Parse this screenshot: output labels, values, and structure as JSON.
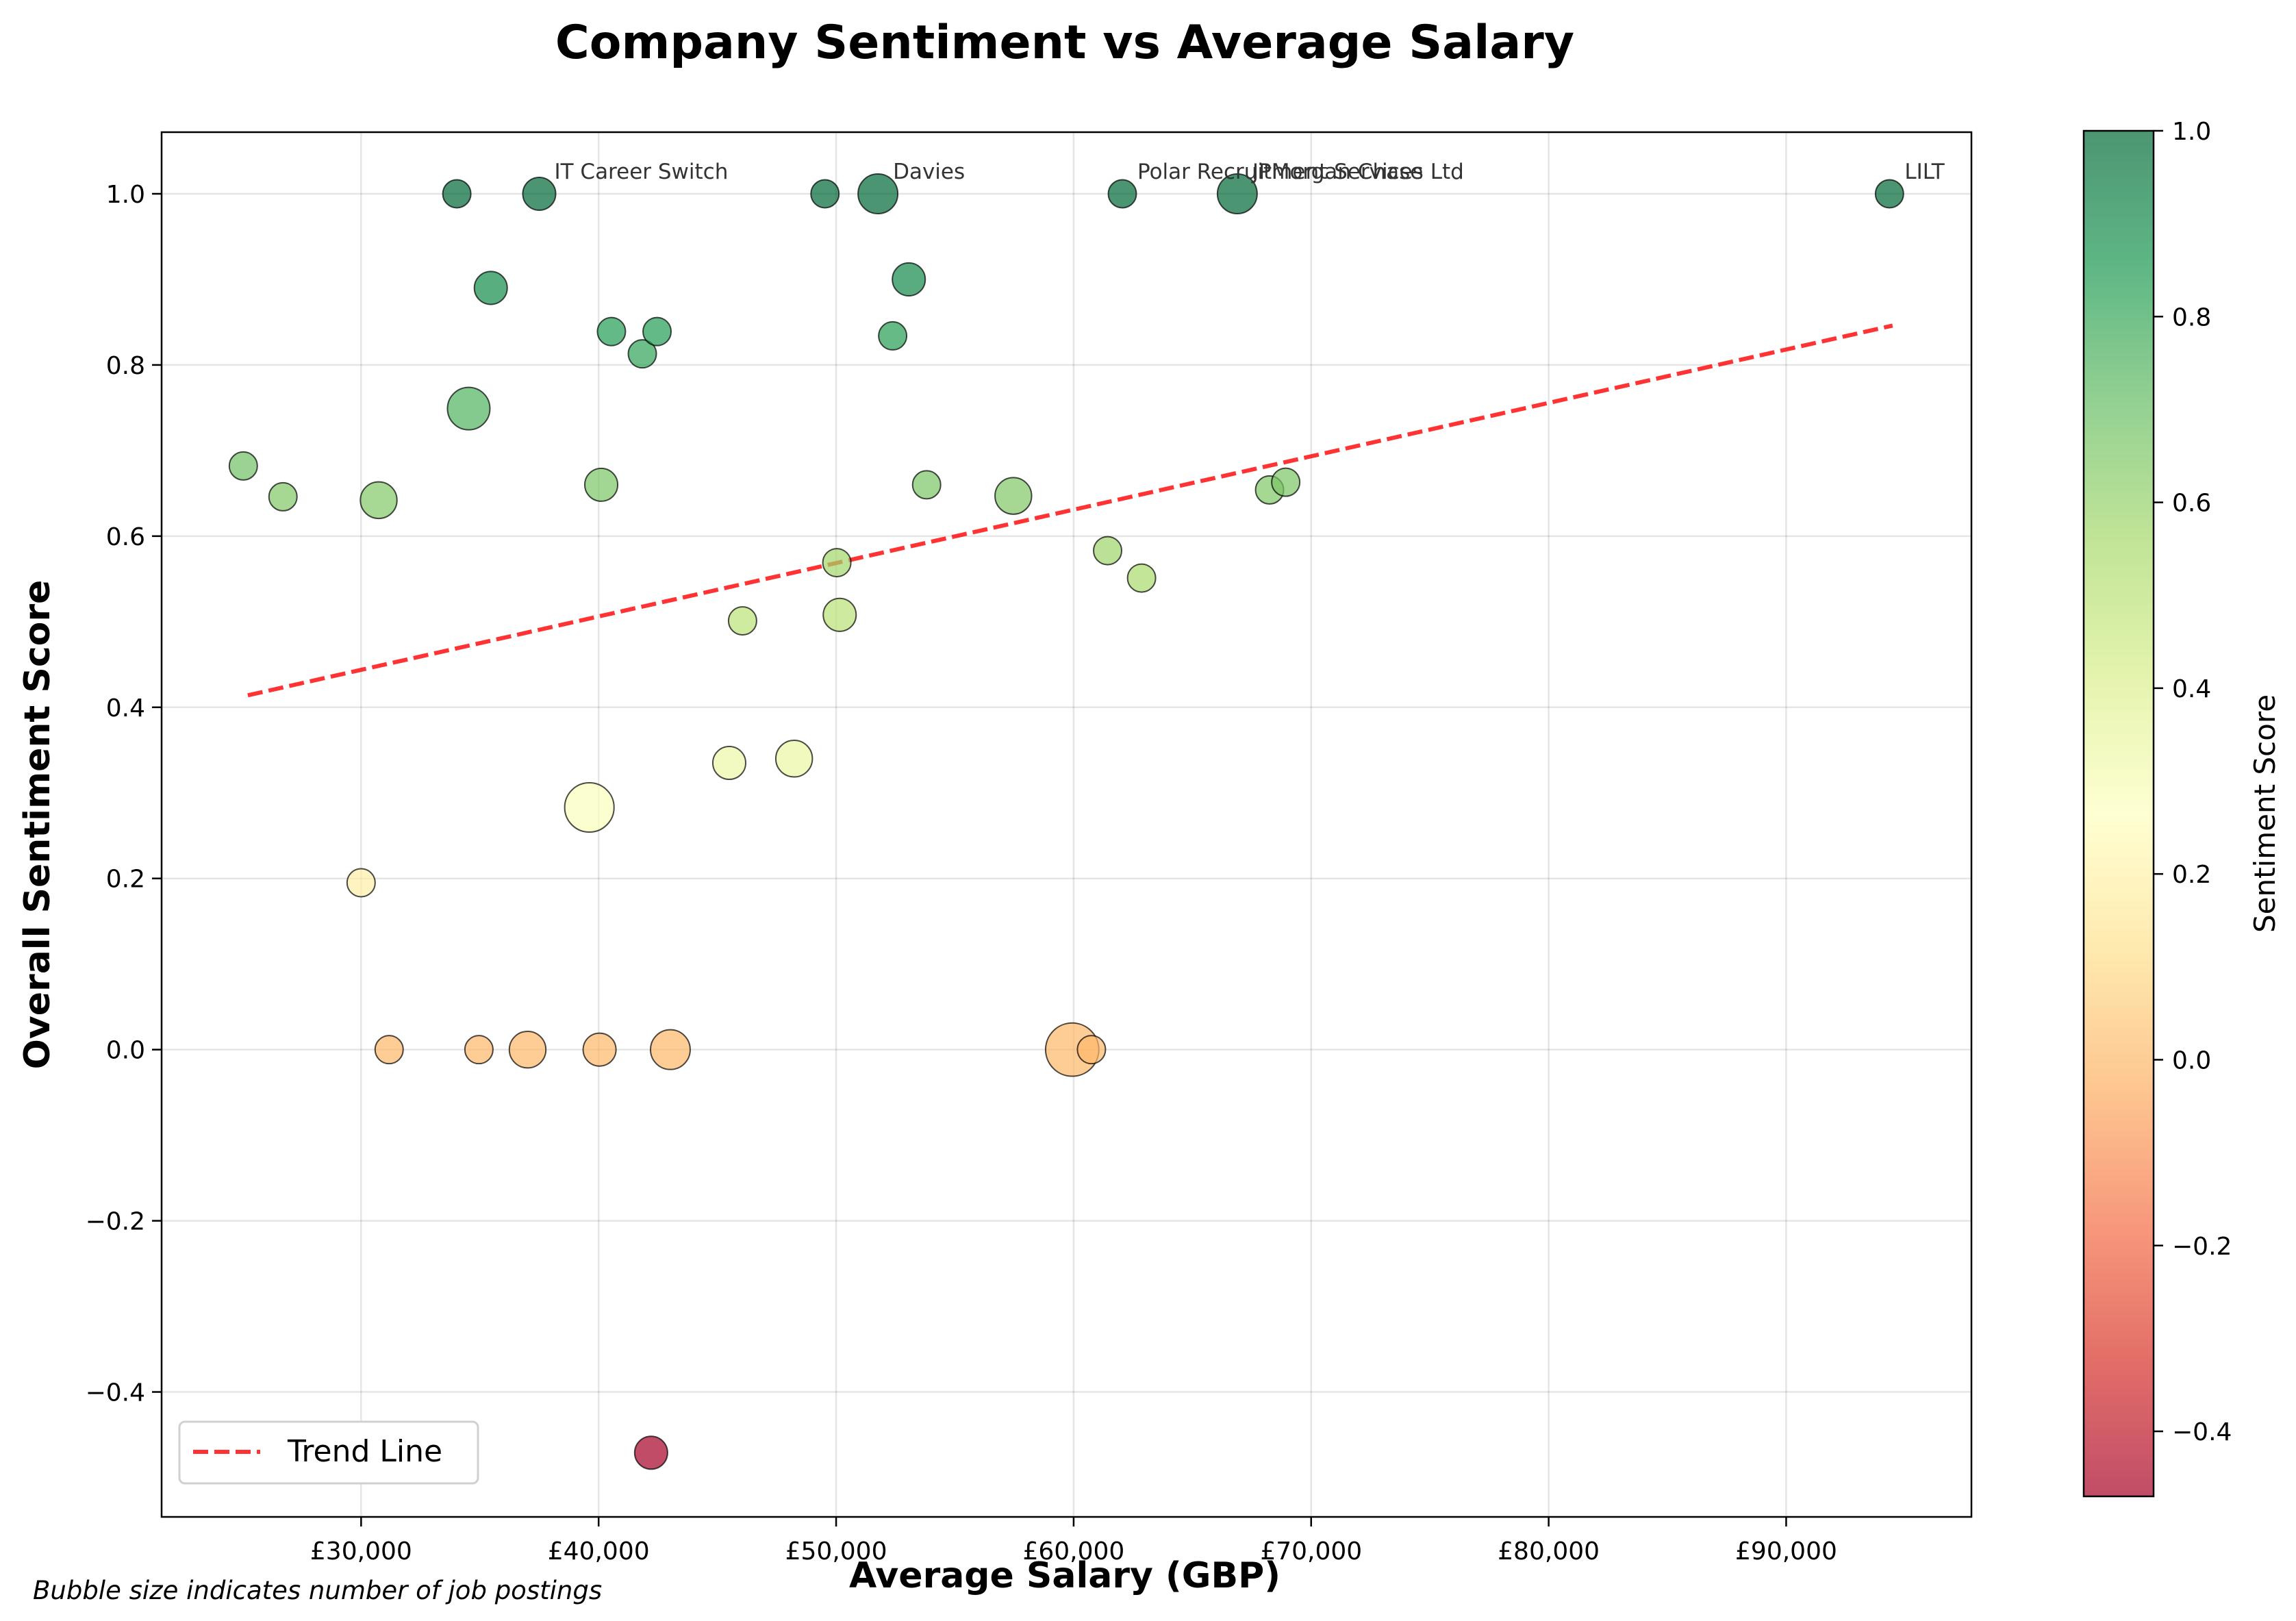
{
  "chart_data": {
    "type": "scatter",
    "title": "Company Sentiment vs Average Salary",
    "xlabel": "Average Salary (GBP)",
    "ylabel": "Overall Sentiment Score",
    "xlim": [
      21600,
      97800
    ],
    "ylim": [
      -0.546,
      1.072
    ],
    "x_ticks": [
      30000,
      40000,
      50000,
      60000,
      70000,
      80000,
      90000
    ],
    "x_tick_labels": [
      "£30,000",
      "£40,000",
      "£50,000",
      "£60,000",
      "£70,000",
      "£80,000",
      "£90,000"
    ],
    "y_ticks": [
      -0.4,
      -0.2,
      0.0,
      0.2,
      0.4,
      0.6,
      0.8,
      1.0
    ],
    "y_tick_labels": [
      "−0.4",
      "−0.2",
      "0.0",
      "0.2",
      "0.4",
      "0.6",
      "0.8",
      "1.0"
    ],
    "grid": true,
    "colorbar": {
      "label": "Sentiment Score",
      "colormap": "RdYlGn",
      "range": [
        -0.47,
        1.0
      ],
      "ticks": [
        -0.4,
        -0.2,
        0.0,
        0.2,
        0.4,
        0.6,
        0.8,
        1.0
      ],
      "tick_labels": [
        "−0.4",
        "−0.2",
        "0.0",
        "0.2",
        "0.4",
        "0.6",
        "0.8",
        "1.0"
      ]
    },
    "points": [
      {
        "x": 25040,
        "y": 0.682,
        "size": 1
      },
      {
        "x": 26710,
        "y": 0.646,
        "size": 1
      },
      {
        "x": 30740,
        "y": 0.642,
        "size": 3
      },
      {
        "x": 34030,
        "y": 1.0,
        "size": 1
      },
      {
        "x": 37500,
        "y": 1.0,
        "size": 2,
        "label": "IT Career Switch"
      },
      {
        "x": 35460,
        "y": 0.89,
        "size": 2
      },
      {
        "x": 34530,
        "y": 0.749,
        "size": 5
      },
      {
        "x": 40110,
        "y": 0.66,
        "size": 2
      },
      {
        "x": 40540,
        "y": 0.839,
        "size": 1
      },
      {
        "x": 41840,
        "y": 0.813,
        "size": 1
      },
      {
        "x": 42460,
        "y": 0.839,
        "size": 1
      },
      {
        "x": 39610,
        "y": 0.283,
        "size": 8
      },
      {
        "x": 30000,
        "y": 0.195,
        "size": 1
      },
      {
        "x": 31180,
        "y": 0.0,
        "size": 1
      },
      {
        "x": 34960,
        "y": 0.0,
        "size": 1
      },
      {
        "x": 37010,
        "y": 0.0,
        "size": 3
      },
      {
        "x": 40040,
        "y": 0.0,
        "size": 2
      },
      {
        "x": 43020,
        "y": 0.0,
        "size": 4
      },
      {
        "x": 42210,
        "y": -0.471,
        "size": 2
      },
      {
        "x": 46060,
        "y": 0.501,
        "size": 1
      },
      {
        "x": 45500,
        "y": 0.335,
        "size": 2
      },
      {
        "x": 48230,
        "y": 0.34,
        "size": 3
      },
      {
        "x": 49530,
        "y": 1.0,
        "size": 1
      },
      {
        "x": 51760,
        "y": 1.0,
        "size": 4,
        "label": "Davies"
      },
      {
        "x": 50030,
        "y": 0.569,
        "size": 1
      },
      {
        "x": 50150,
        "y": 0.508,
        "size": 2
      },
      {
        "x": 52380,
        "y": 0.834,
        "size": 1
      },
      {
        "x": 53060,
        "y": 0.9,
        "size": 2
      },
      {
        "x": 53810,
        "y": 0.66,
        "size": 1
      },
      {
        "x": 57460,
        "y": 0.647,
        "size": 3
      },
      {
        "x": 59940,
        "y": 0.0,
        "size": 10
      },
      {
        "x": 60750,
        "y": 0.0,
        "size": 1
      },
      {
        "x": 61430,
        "y": 0.583,
        "size": 1
      },
      {
        "x": 62050,
        "y": 1.0,
        "size": 1,
        "label": "Polar Recruitment Services Ltd"
      },
      {
        "x": 62860,
        "y": 0.551,
        "size": 1
      },
      {
        "x": 66890,
        "y": 1.0,
        "size": 4,
        "label": "JPMorgan Chase"
      },
      {
        "x": 68250,
        "y": 0.654,
        "size": 1
      },
      {
        "x": 68930,
        "y": 0.663,
        "size": 1
      },
      {
        "x": 94350,
        "y": 1.0,
        "size": 1,
        "label": "LILT"
      }
    ],
    "trend_line": {
      "label": "Trend Line",
      "color": "#ff0000",
      "style": "dashed",
      "x": [
        25230,
        94480
      ],
      "y": [
        0.414,
        0.846
      ]
    },
    "legend": {
      "position": "bottom-left",
      "entries": [
        "Trend Line"
      ]
    },
    "footnote": "Bubble size indicates number of job postings"
  }
}
